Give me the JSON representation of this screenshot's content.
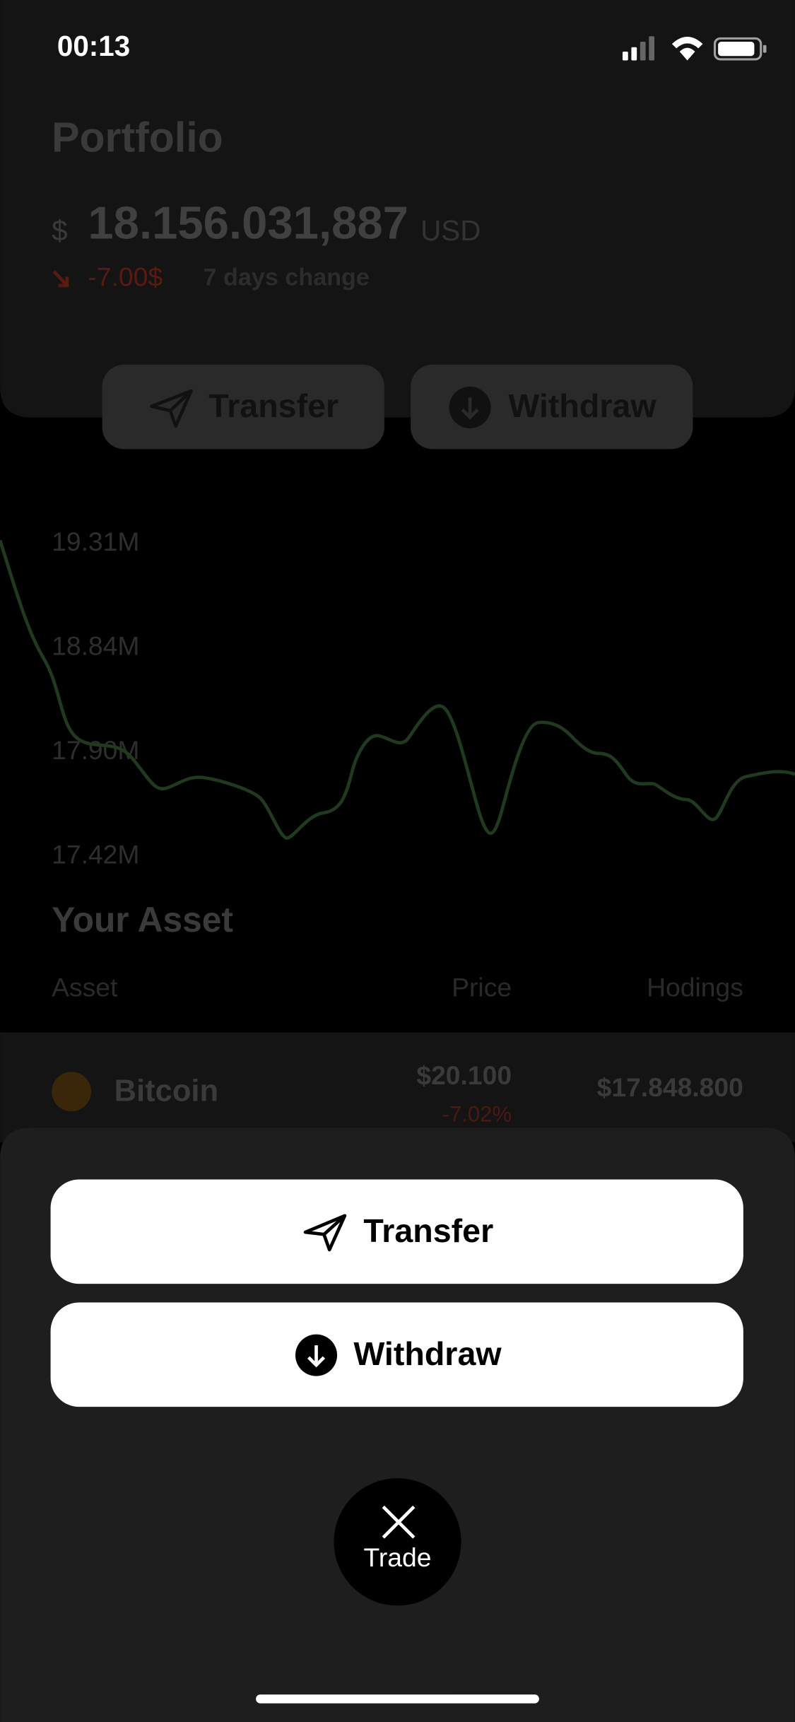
{
  "status_bar": {
    "time": "00:13"
  },
  "portfolio": {
    "title": "Portfolio",
    "currency_symbol": "$",
    "balance": "18.156.031,887",
    "currency": "USD",
    "change": "-7.00$",
    "change_label": "7 days change",
    "actions": [
      "Transfer",
      "Withdraw"
    ]
  },
  "chart": {
    "y_labels": [
      "19.31M",
      "18.84M",
      "17.90M",
      "17.42M"
    ]
  },
  "assets": {
    "title": "Your Asset",
    "columns": [
      "Asset",
      "Price",
      "Hodings"
    ],
    "rows": [
      {
        "name": "Bitcoin",
        "price": "$20.100",
        "change": "-7.02%",
        "holdings": "$17.848.800"
      }
    ]
  },
  "action_sheet": {
    "buttons": [
      "Transfer",
      "Withdraw"
    ],
    "close_label": "Trade"
  }
}
